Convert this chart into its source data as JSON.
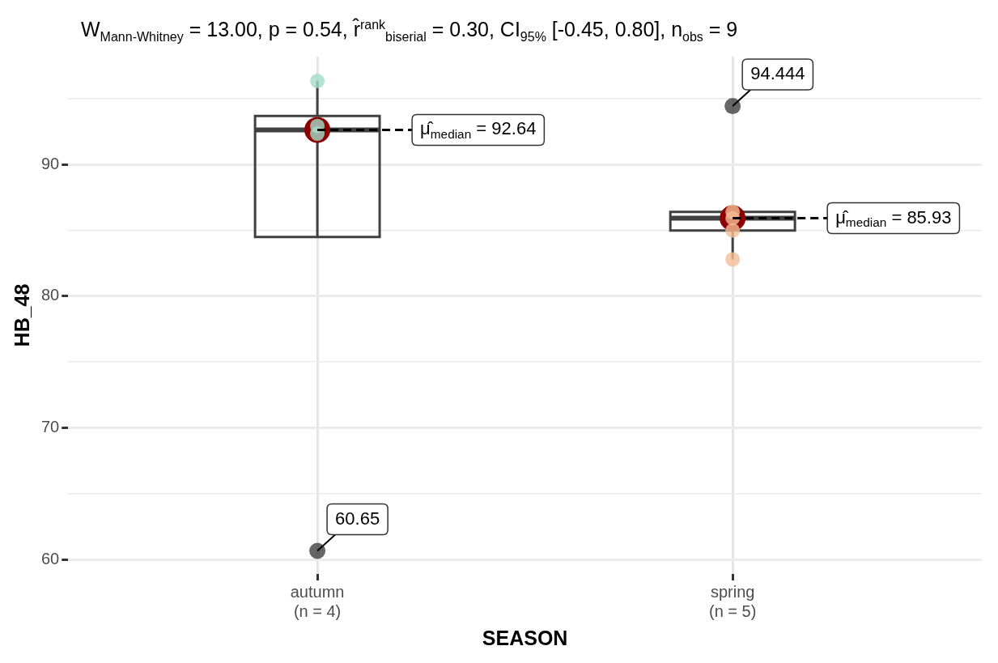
{
  "chart_data": {
    "type": "box",
    "title": "W$_{Mann-Whitney}$ = 13.00, p = 0.54, r̂$^{rank}$$_{biserial}$ = 0.30, CI$_{95%}$ [-0.45, 0.80], n$_{obs}$ = 9",
    "xlabel": "SEASON",
    "ylabel": "HB_48",
    "categories": [
      "autumn\n(n = 4)",
      "spring\n(n = 5)"
    ],
    "ylim": [
      58.9,
      98.2
    ],
    "yticks": [
      60,
      {
        "value": 65,
        "label": null
      },
      70,
      {
        "value": 75,
        "label": null
      },
      80,
      {
        "value": 85,
        "label": null
      },
      90,
      {
        "value": 95,
        "label": null
      }
    ],
    "grid": true,
    "legend": false,
    "series": [
      {
        "type": "box",
        "color": "#404040",
        "boxes": [
          {
            "low": 92.35,
            "q1": 84.5,
            "median": 92.64,
            "q3": 93.7,
            "high": 96.35
          },
          {
            "low": 82.8,
            "q1": 85.0,
            "median": 85.93,
            "q3": 86.4,
            "high": 86.4
          }
        ]
      },
      {
        "type": "scatter",
        "color": "#8b0000",
        "x": [
          "autumn\n(n = 4)",
          "spring\n(n = 5)"
        ],
        "values": [
          92.64,
          85.93
        ]
      },
      {
        "type": "scatter",
        "color": "#a3dcc8",
        "x": [
          "autumn\n(n = 4)",
          "autumn\n(n = 4)",
          "autumn\n(n = 4)"
        ],
        "values": [
          96.35,
          92.93,
          92.35
        ]
      },
      {
        "type": "scatter",
        "color": "#f4bd96",
        "x": [
          "spring\n(n = 5)",
          "spring\n(n = 5)",
          "spring\n(n = 5)",
          "spring\n(n = 5)"
        ],
        "values": [
          86.4,
          85.93,
          85.0,
          82.8
        ]
      },
      {
        "type": "scatter",
        "color": "#404040",
        "x": [
          "autumn\n(n = 4)",
          "spring\n(n = 5)"
        ],
        "values": [
          60.65,
          94.444
        ]
      }
    ],
    "annotations": [
      {
        "text": "60.65",
        "x": "autumn\n(n = 4)",
        "y": 60.65
      },
      {
        "text": "94.444",
        "x": "spring\n(n = 5)",
        "y": 94.444
      },
      {
        "text": "μ̂$_{median}$ = 92.64",
        "x": "autumn\n(n = 4)",
        "y": 92.64
      },
      {
        "text": "μ̂$_{median}$ = 85.93",
        "x": "spring\n(n = 5)",
        "y": 85.93
      }
    ]
  }
}
